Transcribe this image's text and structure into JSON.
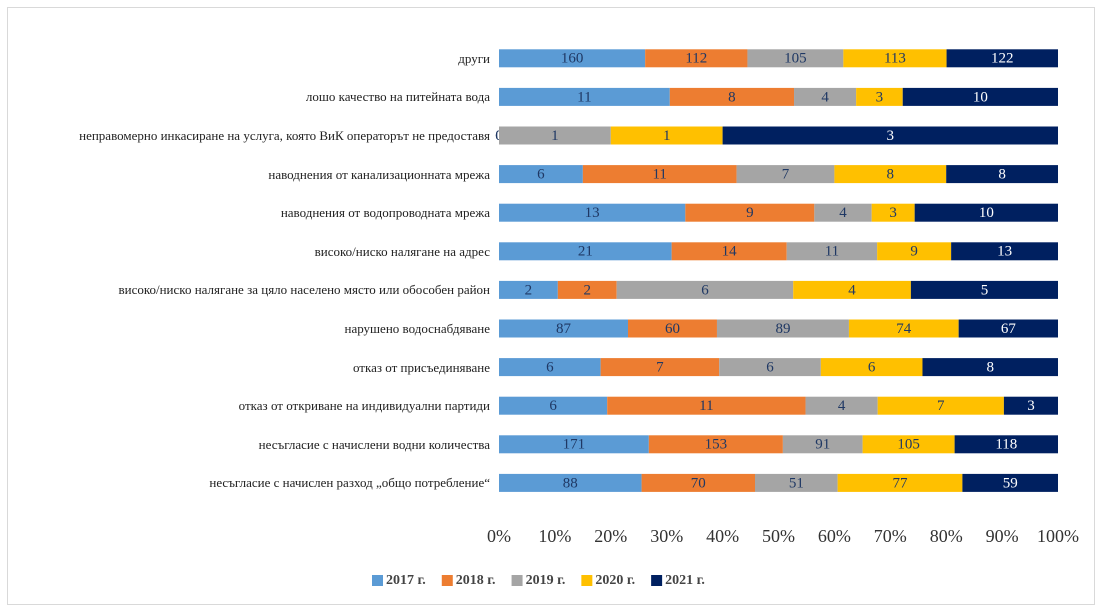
{
  "chart_data": {
    "type": "bar",
    "orientation": "horizontal",
    "stacked": "percent",
    "categories": [
      "други",
      "лошо качество на питейната вода",
      "неправомерно инкасиране на услуга, която ВиК операторът не предоставя",
      "наводнения от канализационната мрежа",
      "наводнения от водопроводната мрежа",
      "високо/ниско налягане на адрес",
      "високо/ниско налягане за цяло населено място или обособен район",
      "нарушено водоснабдяване",
      "отказ от присъединяване",
      "отказ от откриване на индивидуални партиди",
      "несъгласие с начислени водни количества",
      "несъгласие с начислен разход „общо потребление“"
    ],
    "series": [
      {
        "name": "2017 г.",
        "color": "#5b9bd5",
        "values": [
          160,
          11,
          0,
          6,
          13,
          21,
          2,
          87,
          6,
          6,
          171,
          88
        ]
      },
      {
        "name": "2018 г.",
        "color": "#ed7d31",
        "values": [
          112,
          8,
          0,
          11,
          9,
          14,
          2,
          60,
          7,
          11,
          153,
          70
        ]
      },
      {
        "name": "2019 г.",
        "color": "#a5a5a5",
        "values": [
          105,
          4,
          1,
          7,
          4,
          11,
          6,
          89,
          6,
          4,
          91,
          51
        ]
      },
      {
        "name": "2020 г.",
        "color": "#ffc000",
        "values": [
          113,
          3,
          1,
          8,
          3,
          9,
          4,
          74,
          6,
          7,
          105,
          77
        ]
      },
      {
        "name": "2021 г.",
        "color": "#002060",
        "values": [
          122,
          10,
          3,
          8,
          10,
          13,
          5,
          67,
          8,
          3,
          118,
          59
        ]
      }
    ],
    "xlim": [
      0,
      100
    ],
    "xticks": [
      {
        "value": 0,
        "label": "0%"
      },
      {
        "value": 10,
        "label": "10%"
      },
      {
        "value": 20,
        "label": "20%"
      },
      {
        "value": 30,
        "label": "30%"
      },
      {
        "value": 40,
        "label": "40%"
      },
      {
        "value": 50,
        "label": "50%"
      },
      {
        "value": 60,
        "label": "60%"
      },
      {
        "value": 70,
        "label": "70%"
      },
      {
        "value": 80,
        "label": "80%"
      },
      {
        "value": 90,
        "label": "90%"
      },
      {
        "value": 100,
        "label": "100%"
      }
    ],
    "legend": "bottom"
  }
}
